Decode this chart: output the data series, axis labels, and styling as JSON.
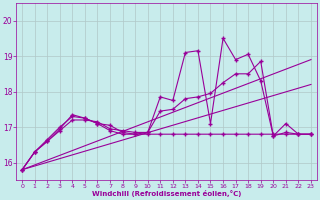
{
  "xlabel": "Windchill (Refroidissement éolien,°C)",
  "background_color": "#c8ecec",
  "grid_color": "#b0c8c8",
  "line_color": "#990099",
  "xmin": -0.5,
  "xmax": 23.5,
  "ymin": 15.5,
  "ymax": 20.5,
  "yticks": [
    16,
    17,
    18,
    19,
    20
  ],
  "xticks": [
    0,
    1,
    2,
    3,
    4,
    5,
    6,
    7,
    8,
    9,
    10,
    11,
    12,
    13,
    14,
    15,
    16,
    17,
    18,
    19,
    20,
    21,
    22,
    23
  ],
  "series_jagged_x": [
    0,
    1,
    2,
    3,
    4,
    5,
    6,
    7,
    8,
    9,
    10,
    11,
    12,
    13,
    14,
    15,
    16,
    17,
    18,
    19,
    20,
    21,
    22,
    23
  ],
  "series_jagged_y": [
    15.8,
    16.3,
    16.6,
    16.95,
    17.35,
    17.25,
    17.1,
    17.05,
    16.85,
    16.8,
    16.85,
    17.85,
    17.75,
    19.1,
    19.15,
    17.1,
    19.5,
    18.9,
    19.05,
    18.3,
    16.75,
    17.1,
    16.8,
    16.8
  ],
  "series_smooth_x": [
    0,
    1,
    2,
    3,
    4,
    5,
    6,
    7,
    8,
    9,
    10,
    11,
    12,
    13,
    14,
    15,
    16,
    17,
    18,
    19,
    20,
    21,
    22,
    23
  ],
  "series_smooth_y": [
    15.8,
    16.3,
    16.6,
    16.9,
    17.2,
    17.2,
    17.15,
    16.95,
    16.9,
    16.85,
    16.85,
    17.45,
    17.5,
    17.8,
    17.85,
    17.95,
    18.25,
    18.5,
    18.5,
    18.85,
    16.75,
    16.85,
    16.8,
    16.8
  ],
  "series_trend1_x": [
    0,
    23
  ],
  "series_trend1_y": [
    15.8,
    18.9
  ],
  "series_trend2_x": [
    0,
    23
  ],
  "series_trend2_y": [
    15.8,
    18.2
  ],
  "series_flat_x": [
    0,
    1,
    2,
    3,
    4,
    5,
    6,
    7,
    8,
    9,
    10,
    11,
    12,
    13,
    14,
    15,
    16,
    17,
    18,
    19,
    20,
    21,
    22,
    23
  ],
  "series_flat_y": [
    15.8,
    16.3,
    16.65,
    17.0,
    17.3,
    17.25,
    17.1,
    16.9,
    16.8,
    16.8,
    16.8,
    16.8,
    16.8,
    16.8,
    16.8,
    16.8,
    16.8,
    16.8,
    16.8,
    16.8,
    16.8,
    16.8,
    16.8,
    16.8
  ]
}
